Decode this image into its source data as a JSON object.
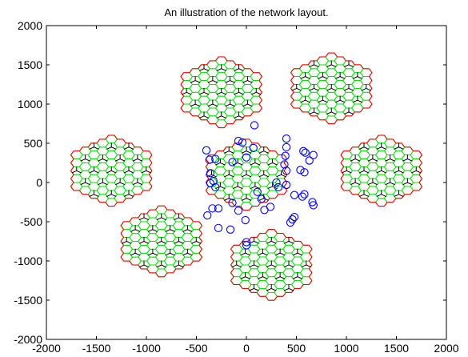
{
  "figure": {
    "title": "An illustration of the network layout."
  },
  "chart_data": {
    "type": "scatter",
    "title": "An illustration of the network layout.",
    "xlabel": "",
    "ylabel": "",
    "xlim": [
      -2000,
      2000
    ],
    "ylim": [
      -2000,
      2000
    ],
    "x_ticks": [
      -2000,
      -1500,
      -1000,
      -500,
      0,
      500,
      1000,
      1500,
      2000
    ],
    "y_ticks": [
      -2000,
      -1500,
      -1000,
      -500,
      0,
      500,
      1000,
      1500,
      2000
    ],
    "x_tick_labels": [
      "-2000",
      "-1500",
      "-1000",
      "-500",
      "0",
      "500",
      "1000",
      "1500",
      "2000"
    ],
    "y_tick_labels": [
      "-2000",
      "-1500",
      "-1000",
      "-500",
      "0",
      "500",
      "1000",
      "1500",
      "2000"
    ],
    "grid": false,
    "layout": {
      "cell_radius": 58,
      "cluster_centers": [
        [
          -250,
          1150
        ],
        [
          850,
          1200
        ],
        [
          1350,
          150
        ],
        [
          250,
          -1050
        ],
        [
          -850,
          -750
        ],
        [
          -1350,
          150
        ]
      ],
      "central_cluster_center": [
        0,
        100
      ],
      "cluster_radius_cells": 4
    },
    "series": [
      {
        "marker": "circle",
        "points": [
          [
            80,
            730
          ],
          [
            -80,
            530
          ],
          [
            -40,
            510
          ],
          [
            70,
            440
          ],
          [
            -400,
            410
          ],
          [
            -310,
            300
          ],
          [
            -370,
            290
          ],
          [
            -140,
            260
          ],
          [
            0,
            320
          ],
          [
            -360,
            120
          ],
          [
            -330,
            20
          ],
          [
            -360,
            -10
          ],
          [
            -310,
            -60
          ],
          [
            -140,
            -260
          ],
          [
            -280,
            -330
          ],
          [
            -340,
            -330
          ],
          [
            -390,
            -420
          ],
          [
            -80,
            -360
          ],
          [
            -10,
            -480
          ],
          [
            -280,
            -580
          ],
          [
            -160,
            -600
          ],
          [
            0,
            -760
          ],
          [
            0,
            -800
          ],
          [
            110,
            -120
          ],
          [
            150,
            -210
          ],
          [
            180,
            -350
          ],
          [
            240,
            -310
          ],
          [
            400,
            560
          ],
          [
            400,
            450
          ],
          [
            570,
            400
          ],
          [
            590,
            380
          ],
          [
            670,
            350
          ],
          [
            390,
            340
          ],
          [
            380,
            230
          ],
          [
            400,
            150
          ],
          [
            630,
            280
          ],
          [
            540,
            160
          ],
          [
            580,
            130
          ],
          [
            480,
            -160
          ],
          [
            580,
            -150
          ],
          [
            560,
            -180
          ],
          [
            660,
            -250
          ],
          [
            670,
            -290
          ],
          [
            480,
            -440
          ],
          [
            460,
            -470
          ],
          [
            440,
            -510
          ],
          [
            400,
            -30
          ],
          [
            300,
            0
          ],
          [
            320,
            -60
          ]
        ]
      }
    ],
    "colors": {
      "inner_cells": "#00dd00",
      "cluster_boundary": "#ee0000",
      "sector_antenna": "#000000",
      "users": "#0000ff",
      "axes": "#000000"
    }
  }
}
